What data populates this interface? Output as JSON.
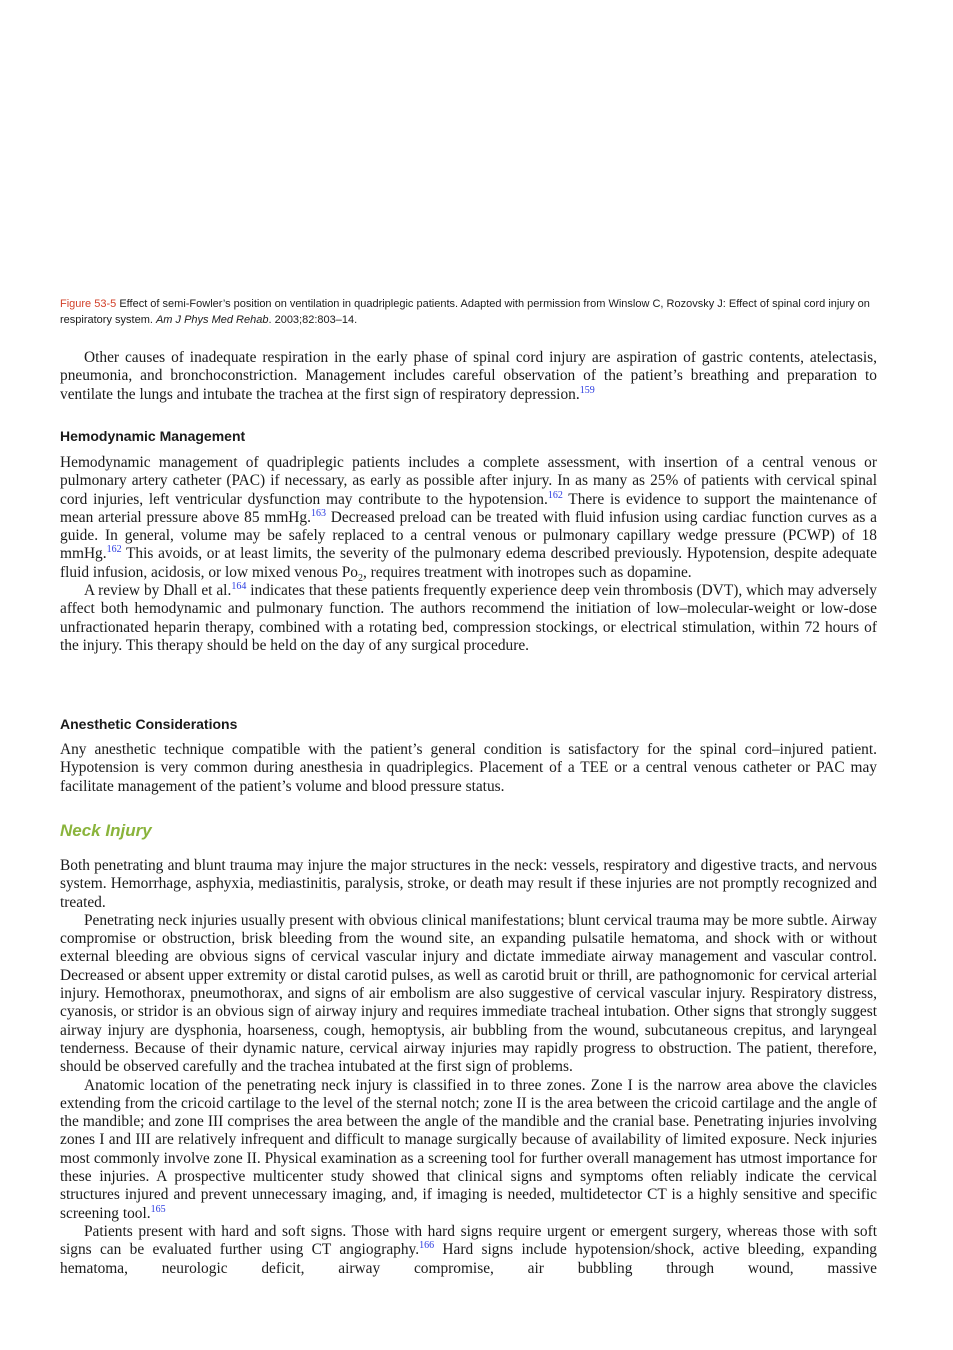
{
  "caption": {
    "label": "Figure 53-5",
    "text": " Effect of semi-Fowler’s position on ventilation in quadriplegic patients. Adapted with permission from Winslow C, Rozovsky J: Effect of spinal cord injury on respiratory system. ",
    "journal": "Am J Phys Med Rehab",
    "citation": ". 2003;82:803–14."
  },
  "body": {
    "paragraphs": [
      [
        "Other causes of inadequate respiration in the early phase of spinal cord injury are aspiration of gastric contents, atelectasis, pneumonia, and bronchoconstriction. Management includes careful observation of the patient’s breathing and preparation to ventilate the lungs and intubate the trachea at the first sign of respiratory depression.",
        {
          "sup": "159"
        }
      ],
      [
        "Hemodynamic management of quadriplegic patients includes a complete assessment, with insertion of a central venous or pulmonary artery catheter (PAC) if necessary, as early as possible after injury. In as many as 25% of patients with cervical spinal cord injuries, left ventricular dysfunction may contribute to the hypotension.",
        {
          "sup": "162"
        },
        " There is evidence to support the maintenance of mean arterial pressure above 85 mmHg.",
        {
          "sup": "163"
        },
        " Decreased preload can be treated with fluid infusion using cardiac function curves as a guide. In general, volume may be safely replaced to a central venous or pulmonary capillary wedge pressure (PCWP) of 18 mmHg.",
        {
          "sup": "162"
        },
        " This avoids, or at least limits, the severity of the pulmonary edema described previously. Hypotension, despite adequate fluid infusion, acidosis, or low mixed venous Po",
        {
          "sub": "2"
        },
        ", requires treatment with inotropes such as dopamine."
      ],
      [
        "A review by Dhall et al.",
        {
          "sup": "164"
        },
        " indicates that these patients frequently experience deep vein thrombosis (DVT), which may adversely affect both hemodynamic and pulmonary function. The authors recommend the initiation of low–molecular-weight or low-dose unfractionated heparin therapy, combined with a rotating bed, compression stockings, or electrical stimulation, within 72 hours of the injury. This therapy should be held on the day of any surgical procedure."
      ],
      [
        "Any anesthetic technique compatible with the patient’s general condition is satisfactory for the spinal cord–injured patient. Hypotension is very common during anesthesia in quadriplegics. Placement of a TEE or a central venous catheter or PAC may facilitate management of the patient’s volume and blood pressure status."
      ],
      [
        "Both penetrating and blunt trauma may injure the major structures in the neck: vessels, respiratory and digestive tracts, and nervous system. Hemorrhage, asphyxia, mediastinitis, paralysis, stroke, or death may result if these injuries are not promptly recognized and treated."
      ],
      [
        "Penetrating neck injuries usually present with obvious clinical manifestations; blunt cervical trauma may be more subtle. Airway compromise or obstruction, brisk bleeding from the wound site, an expanding pulsatile hematoma, and shock with or without external bleeding are obvious signs of cervical vascular injury and dictate immediate airway management and vascular control. Decreased or absent upper extremity or distal carotid pulses, as well as carotid bruit or thrill, are pathognomonic for cervical arterial injury. Hemothorax, pneumothorax, and signs of air embolism are also suggestive of cervical vascular injury. Respiratory distress, cyanosis, or stridor is an obvious sign of airway injury and requires immediate tracheal intubation. Other signs that strongly suggest airway injury are dysphonia, hoarseness, cough, hemoptysis, air bubbling from the wound, subcutaneous crepitus, and laryngeal tenderness. Because of their dynamic nature, cervical airway injuries may rapidly progress to obstruction. The patient, therefore, should be observed carefully and the trachea intubated at the first sign of problems."
      ],
      [
        "Anatomic location of the penetrating neck injury is classified in to three zones. Zone I is the narrow area above the clavicles extending from the cricoid cartilage to the level of the sternal notch; zone II is the area between the cricoid cartilage and the angle of the mandible; and zone III comprises the area between the angle of the mandible and the cranial base. Penetrating injuries involving zones I and III are relatively infrequent and difficult to manage surgically because of availability of limited exposure. Neck injuries most commonly involve zone II. Physical examination as a screening tool for further overall management has utmost importance for these injuries. A prospective multicenter study showed that clinical signs and symptoms often reliably indicate the cervical structures injured and prevent unnecessary imaging, and, if imaging is needed, multidetector CT is a highly sensitive and specific screening tool.",
        {
          "sup": "165"
        }
      ],
      [
        "Patients present with hard and soft signs. Those with hard signs require urgent or emergent surgery, whereas those with soft signs can be evaluated further using CT angiography.",
        {
          "sup": "166"
        },
        " Hard signs include hypotension/shock, active bleeding, expanding hematoma, neurologic deficit, airway compromise, air bubbling through wound, massive"
      ]
    ],
    "headings": [
      "Hemodynamic Management",
      "Anesthetic Considerations"
    ],
    "section_title": "Neck Injury"
  }
}
